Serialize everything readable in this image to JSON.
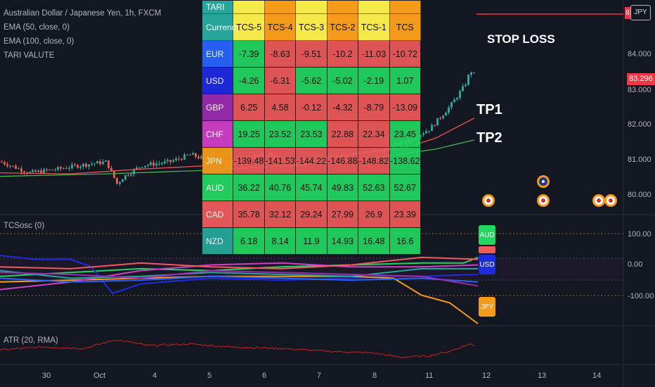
{
  "legend": {
    "title": "Australian Dollar / Japanese Yen, 1h, FXCM",
    "ema50": "EMA (50, close, 0)",
    "ema100": "EMA (100, close, 0)",
    "tari": "TARI VALUTE"
  },
  "table": {
    "title": "TARI",
    "currency_label": "Currency",
    "columns": [
      "TCS-5",
      "TCS-4",
      "TCS-3",
      "TCS-2",
      "TCS-1",
      "TCS"
    ],
    "header_colors": [
      "#f5e94b",
      "#f59a1b",
      "#f5e94b",
      "#f59a1b",
      "#f5e94b",
      "#f59a1b"
    ],
    "rows": [
      {
        "currency": "EUR",
        "label_color": "#2962ff",
        "values": [
          "-7.39",
          "-8.63",
          "-9.51",
          "-10.2",
          "-11.03",
          "-10.72"
        ],
        "colors": [
          "#22d660",
          "#f05a5a",
          "#f05a5a",
          "#f05a5a",
          "#f05a5a",
          "#f05a5a"
        ]
      },
      {
        "currency": "USD",
        "label_color": "#1e2be0",
        "values": [
          "-4.26",
          "-6.31",
          "-5.62",
          "-5.02",
          "-2.19",
          "1.07"
        ],
        "colors": [
          "#22d660",
          "#f05a5a",
          "#22d660",
          "#22d660",
          "#22d660",
          "#22d660"
        ]
      },
      {
        "currency": "GBP",
        "label_color": "#9b2bb0",
        "values": [
          "6.25",
          "4.58",
          "-0.12",
          "-4.32",
          "-8.79",
          "-13.09"
        ],
        "colors": [
          "#f05a5a",
          "#f05a5a",
          "#f05a5a",
          "#f05a5a",
          "#f05a5a",
          "#f05a5a"
        ]
      },
      {
        "currency": "CHF",
        "label_color": "#ce3fc6",
        "values": [
          "19.25",
          "23.52",
          "23.53",
          "22.88",
          "22.34",
          "23.45"
        ],
        "colors": [
          "#22d660",
          "#22d660",
          "#22d660",
          "#f05a5a",
          "#f05a5a",
          "#22d660"
        ]
      },
      {
        "currency": "JPN",
        "label_color": "#f59a1b",
        "values": [
          "-139.48",
          "-141.53",
          "-144.22",
          "-146.88",
          "-148.82",
          "-138.62"
        ],
        "colors": [
          "#f05a5a",
          "#f05a5a",
          "#f05a5a",
          "#f05a5a",
          "#f05a5a",
          "#22d660"
        ]
      },
      {
        "currency": "AUD",
        "label_color": "#22d660",
        "values": [
          "36.22",
          "40.76",
          "45.74",
          "49.83",
          "52.63",
          "52.67"
        ],
        "colors": [
          "#22d660",
          "#22d660",
          "#22d660",
          "#22d660",
          "#22d660",
          "#22d660"
        ]
      },
      {
        "currency": "CAD",
        "label_color": "#f05a5a",
        "values": [
          "35.78",
          "32.12",
          "29.24",
          "27.99",
          "26.9",
          "23.39"
        ],
        "colors": [
          "#f05a5a",
          "#f05a5a",
          "#f05a5a",
          "#f05a5a",
          "#f05a5a",
          "#f05a5a"
        ]
      },
      {
        "currency": "NZD",
        "label_color": "#26a69a",
        "values": [
          "6.18",
          "8.14",
          "11.9",
          "14.93",
          "16.48",
          "16.6"
        ],
        "colors": [
          "#22d660",
          "#22d660",
          "#22d660",
          "#22d660",
          "#22d660",
          "#22d660"
        ]
      }
    ]
  },
  "annotations": {
    "stop_loss": "STOP LOSS",
    "tp1": "TP1",
    "tp2": "TP2"
  },
  "price_axis": {
    "labels": [
      "84.000",
      "83.000",
      "82.000",
      "81.000",
      "80.000"
    ],
    "current": "83.296",
    "jpy_tag": "JPY",
    "tag_digit": "8"
  },
  "osc": {
    "label": "TCSosc (0)",
    "ticks": [
      "100.00",
      "0.00",
      "-100.00"
    ],
    "tags": {
      "aud": "AUD",
      "usd": "USD",
      "jpy": "JPY"
    }
  },
  "atr": {
    "label": "ATR (20, RMA)"
  },
  "time_axis": {
    "labels": [
      "30",
      "Oct",
      "4",
      "5",
      "6",
      "7",
      "8",
      "11",
      "12",
      "13",
      "14"
    ]
  },
  "colors": {
    "up": "#26a69a",
    "down": "#ef5350",
    "ema50": "#ef5350",
    "ema100": "#4caf50",
    "stop": "#f23645",
    "atr": "#b71c1c"
  },
  "chart_data": {
    "type": "candlestick",
    "title": "Australian Dollar / Japanese Yen, 1h, FXCM",
    "ylim": [
      79.6,
      85.0
    ],
    "price_path": [
      [
        0,
        80.95
      ],
      [
        40,
        80.65
      ],
      [
        80,
        80.75
      ],
      [
        110,
        80.85
      ],
      [
        150,
        80.95
      ],
      [
        165,
        80.35
      ],
      [
        175,
        80.55
      ],
      [
        200,
        80.85
      ],
      [
        240,
        80.95
      ],
      [
        270,
        81.15
      ],
      [
        300,
        80.95
      ],
      [
        340,
        81.05
      ],
      [
        380,
        81.15
      ],
      [
        420,
        80.85
      ],
      [
        460,
        81.05
      ],
      [
        500,
        81.2
      ],
      [
        540,
        81.25
      ],
      [
        580,
        81.55
      ],
      [
        610,
        81.85
      ],
      [
        640,
        82.5
      ],
      [
        660,
        83.05
      ],
      [
        668,
        83.45
      ],
      [
        675,
        83.3
      ]
    ],
    "ema50_path": [
      [
        0,
        80.65
      ],
      [
        100,
        80.62
      ],
      [
        200,
        80.75
      ],
      [
        300,
        80.85
      ],
      [
        400,
        80.95
      ],
      [
        500,
        81.15
      ],
      [
        580,
        81.35
      ],
      [
        620,
        81.6
      ],
      [
        660,
        82.0
      ],
      [
        675,
        82.15
      ]
    ],
    "ema100_path": [
      [
        0,
        80.55
      ],
      [
        150,
        80.62
      ],
      [
        300,
        80.72
      ],
      [
        450,
        80.9
      ],
      [
        550,
        81.1
      ],
      [
        620,
        81.3
      ],
      [
        675,
        81.55
      ]
    ],
    "stop_loss": 84.95,
    "current_price": 83.296,
    "osc_ylim": [
      -130,
      130
    ],
    "osc_series": [
      {
        "color": "#22d660",
        "points": [
          [
            0,
            -5
          ],
          [
            100,
            5
          ],
          [
            200,
            15
          ],
          [
            300,
            10
          ],
          [
            400,
            20
          ],
          [
            500,
            25
          ],
          [
            600,
            30
          ],
          [
            660,
            30
          ],
          [
            680,
            45
          ]
        ]
      },
      {
        "color": "#1e2be0",
        "points": [
          [
            0,
            50
          ],
          [
            50,
            40
          ],
          [
            100,
            40
          ],
          [
            130,
            20
          ],
          [
            160,
            -50
          ],
          [
            200,
            -25
          ],
          [
            300,
            -10
          ],
          [
            400,
            -15
          ],
          [
            500,
            -10
          ],
          [
            550,
            -5
          ],
          [
            600,
            -5
          ],
          [
            680,
            0
          ]
        ]
      },
      {
        "color": "#f59a1b",
        "points": [
          [
            0,
            -20
          ],
          [
            100,
            -15
          ],
          [
            200,
            -10
          ],
          [
            300,
            -5
          ],
          [
            400,
            -5
          ],
          [
            500,
            -5
          ],
          [
            560,
            -10
          ],
          [
            600,
            -55
          ],
          [
            640,
            -75
          ],
          [
            680,
            -130
          ]
        ]
      },
      {
        "color": "#ce3fc6",
        "points": [
          [
            0,
            -40
          ],
          [
            100,
            -20
          ],
          [
            200,
            10
          ],
          [
            300,
            25
          ],
          [
            400,
            30
          ],
          [
            500,
            20
          ],
          [
            600,
            20
          ],
          [
            680,
            25
          ]
        ]
      },
      {
        "color": "#26a69a",
        "points": [
          [
            0,
            10
          ],
          [
            100,
            -10
          ],
          [
            200,
            -5
          ],
          [
            300,
            5
          ],
          [
            400,
            0
          ],
          [
            500,
            -5
          ],
          [
            600,
            15
          ],
          [
            680,
            15
          ]
        ]
      },
      {
        "color": "#f05a5a",
        "points": [
          [
            0,
            20
          ],
          [
            100,
            15
          ],
          [
            200,
            30
          ],
          [
            300,
            20
          ],
          [
            400,
            15
          ],
          [
            500,
            25
          ],
          [
            600,
            45
          ],
          [
            680,
            40
          ]
        ]
      },
      {
        "color": "#2962ff",
        "points": [
          [
            0,
            -10
          ],
          [
            100,
            -20
          ],
          [
            200,
            -15
          ],
          [
            300,
            -5
          ],
          [
            400,
            -10
          ],
          [
            500,
            -15
          ],
          [
            600,
            -10
          ],
          [
            680,
            -20
          ]
        ]
      },
      {
        "color": "#9b2bb0",
        "points": [
          [
            0,
            5
          ],
          [
            100,
            0
          ],
          [
            200,
            -10
          ],
          [
            300,
            10
          ],
          [
            400,
            5
          ],
          [
            500,
            0
          ],
          [
            600,
            -5
          ],
          [
            680,
            -30
          ]
        ]
      }
    ],
    "atr_ylim": [
      0,
      1
    ],
    "atr_path": [
      [
        0,
        0.35
      ],
      [
        60,
        0.45
      ],
      [
        120,
        0.4
      ],
      [
        165,
        0.7
      ],
      [
        210,
        0.5
      ],
      [
        270,
        0.55
      ],
      [
        330,
        0.45
      ],
      [
        400,
        0.4
      ],
      [
        470,
        0.3
      ],
      [
        530,
        0.25
      ],
      [
        570,
        0.1
      ],
      [
        610,
        0.15
      ],
      [
        640,
        0.3
      ],
      [
        668,
        0.55
      ],
      [
        675,
        0.5
      ]
    ]
  }
}
